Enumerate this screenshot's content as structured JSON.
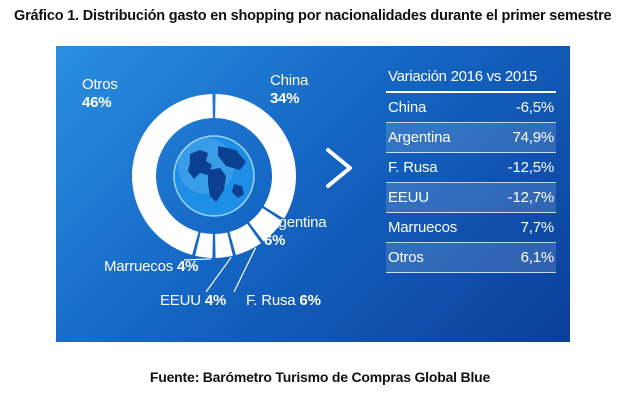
{
  "title": "Gráfico 1. Distribución gasto en shopping por nacionalidades durante el primer semestre",
  "source": "Fuente: Barómetro Turismo de Compras Global Blue",
  "colors": {
    "background_top": "#2a8fe0",
    "background_bottom": "#0b3f99",
    "ring": "#ffffff",
    "globe": "#1e8fe6",
    "text": "#ffffff"
  },
  "icons": {
    "center": "globe-icon",
    "pointer": "arrow-right-icon"
  },
  "chart_data": [
    {
      "type": "pie",
      "title": "",
      "slices": [
        {
          "name": "China",
          "value": 34,
          "label": "34%"
        },
        {
          "name": "Argentina",
          "value": 6,
          "label": "6%"
        },
        {
          "name": "F. Rusa",
          "value": 6,
          "label": "6%"
        },
        {
          "name": "EEUU",
          "value": 4,
          "label": "4%"
        },
        {
          "name": "Marruecos",
          "value": 4,
          "label": "4%"
        },
        {
          "name": "Otros",
          "value": 46,
          "label": "46%"
        }
      ]
    },
    {
      "type": "table",
      "title": "Variación 2016 vs 2015",
      "rows": [
        {
          "name": "China",
          "value": -6.5,
          "label": "-6,5%"
        },
        {
          "name": "Argentina",
          "value": 74.9,
          "label": "74,9%"
        },
        {
          "name": "F. Rusa",
          "value": -12.5,
          "label": "-12,5%"
        },
        {
          "name": "EEUU",
          "value": -12.7,
          "label": "-12,7%"
        },
        {
          "name": "Marruecos",
          "value": 7.7,
          "label": "7,7%"
        },
        {
          "name": "Otros",
          "value": 6.1,
          "label": "6,1%"
        }
      ]
    }
  ]
}
